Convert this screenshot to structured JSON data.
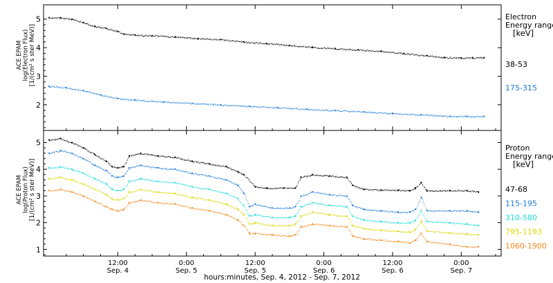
{
  "chart_data": [
    {
      "type": "scatter",
      "panel": "electron",
      "ylabel_lines": [
        "ACE EPAM",
        "log(Electron Flux)",
        "[1/(cm² s ster MeV)]"
      ],
      "yticks": [
        "5",
        "4",
        "3",
        "2"
      ],
      "ylim": [
        1.1,
        5.5
      ],
      "xlim": [
        0,
        78
      ],
      "legend_title": [
        "Electron",
        "Energy ranges",
        "[keV]"
      ],
      "grid": false,
      "series": [
        {
          "name": "38-53",
          "color": "#000000",
          "points": [
            [
              0,
              5.05
            ],
            [
              2,
              5.05
            ],
            [
              4,
              5.0
            ],
            [
              6,
              4.88
            ],
            [
              8,
              4.75
            ],
            [
              10,
              4.68
            ],
            [
              12,
              4.57
            ],
            [
              13,
              4.48
            ],
            [
              15,
              4.45
            ],
            [
              18,
              4.42
            ],
            [
              22,
              4.38
            ],
            [
              26,
              4.32
            ],
            [
              30,
              4.28
            ],
            [
              34,
              4.2
            ],
            [
              38,
              4.15
            ],
            [
              42,
              4.08
            ],
            [
              46,
              4.02
            ],
            [
              50,
              3.97
            ],
            [
              54,
              3.93
            ],
            [
              58,
              3.88
            ],
            [
              62,
              3.8
            ],
            [
              66,
              3.72
            ],
            [
              69,
              3.66
            ],
            [
              72,
              3.64
            ],
            [
              74,
              3.65
            ],
            [
              76,
              3.65
            ]
          ]
        },
        {
          "name": "175-315",
          "color": "#1a7ad8",
          "points": [
            [
              0,
              2.65
            ],
            [
              3,
              2.6
            ],
            [
              6,
              2.5
            ],
            [
              9,
              2.35
            ],
            [
              12,
              2.22
            ],
            [
              15,
              2.17
            ],
            [
              20,
              2.1
            ],
            [
              25,
              2.05
            ],
            [
              30,
              2.0
            ],
            [
              35,
              1.95
            ],
            [
              40,
              1.9
            ],
            [
              45,
              1.85
            ],
            [
              50,
              1.8
            ],
            [
              55,
              1.75
            ],
            [
              60,
              1.7
            ],
            [
              65,
              1.65
            ],
            [
              70,
              1.6
            ],
            [
              73,
              1.6
            ],
            [
              76,
              1.6
            ]
          ]
        }
      ]
    },
    {
      "type": "scatter",
      "panel": "proton",
      "ylabel_lines": [
        "ACE EPAM",
        "log(Proton Flux)",
        "[1/(cm² s ster MeV)]"
      ],
      "yticks": [
        "5",
        "4",
        "3",
        "2",
        "1"
      ],
      "ylim": [
        0.75,
        5.45
      ],
      "xlim": [
        0,
        78
      ],
      "legend_title": [
        "Proton",
        "Energy ranges",
        "[keV]"
      ],
      "grid": false,
      "series": [
        {
          "name": "47-68",
          "color": "#000000",
          "points": [
            [
              0,
              5.1
            ],
            [
              2,
              5.15
            ],
            [
              4,
              5.0
            ],
            [
              6,
              4.8
            ],
            [
              8,
              4.55
            ],
            [
              10,
              4.3
            ],
            [
              11,
              4.1
            ],
            [
              12,
              4.05
            ],
            [
              13,
              4.1
            ],
            [
              14,
              4.5
            ],
            [
              16,
              4.6
            ],
            [
              19,
              4.5
            ],
            [
              22,
              4.45
            ],
            [
              25,
              4.3
            ],
            [
              28,
              4.2
            ],
            [
              31,
              4.1
            ],
            [
              33,
              3.9
            ],
            [
              34,
              3.8
            ],
            [
              36,
              3.35
            ],
            [
              38,
              3.3
            ],
            [
              41,
              3.3
            ],
            [
              43,
              3.3
            ],
            [
              44,
              3.7
            ],
            [
              46,
              3.8
            ],
            [
              49,
              3.75
            ],
            [
              52,
              3.7
            ],
            [
              53,
              3.4
            ],
            [
              55,
              3.25
            ],
            [
              58,
              3.22
            ],
            [
              61,
              3.22
            ],
            [
              63,
              3.2
            ],
            [
              64,
              3.3
            ],
            [
              65,
              3.5
            ],
            [
              66,
              3.2
            ],
            [
              70,
              3.2
            ],
            [
              73,
              3.2
            ],
            [
              75,
              3.15
            ]
          ]
        },
        {
          "name": "115-195",
          "color": "#1a7ad8",
          "points": [
            [
              0,
              4.6
            ],
            [
              2,
              4.7
            ],
            [
              4,
              4.6
            ],
            [
              6,
              4.4
            ],
            [
              8,
              4.15
            ],
            [
              10,
              3.95
            ],
            [
              11,
              3.75
            ],
            [
              12,
              3.7
            ],
            [
              13,
              3.75
            ],
            [
              14,
              4.05
            ],
            [
              16,
              4.15
            ],
            [
              19,
              4.05
            ],
            [
              22,
              4.0
            ],
            [
              25,
              3.85
            ],
            [
              28,
              3.75
            ],
            [
              31,
              3.6
            ],
            [
              33,
              3.4
            ],
            [
              34,
              3.1
            ],
            [
              35,
              2.6
            ],
            [
              36,
              2.7
            ],
            [
              39,
              2.55
            ],
            [
              42,
              2.55
            ],
            [
              43,
              2.6
            ],
            [
              44,
              3.0
            ],
            [
              46,
              3.15
            ],
            [
              49,
              3.05
            ],
            [
              52,
              3.0
            ],
            [
              53,
              2.65
            ],
            [
              55,
              2.5
            ],
            [
              58,
              2.45
            ],
            [
              61,
              2.4
            ],
            [
              63,
              2.4
            ],
            [
              64,
              2.5
            ],
            [
              65,
              2.95
            ],
            [
              66,
              2.45
            ],
            [
              70,
              2.45
            ],
            [
              73,
              2.45
            ],
            [
              75,
              2.4
            ]
          ]
        },
        {
          "name": "310-580",
          "color": "#22d8d8",
          "points": [
            [
              0,
              4.05
            ],
            [
              2,
              4.1
            ],
            [
              4,
              4.0
            ],
            [
              6,
              3.85
            ],
            [
              8,
              3.65
            ],
            [
              10,
              3.45
            ],
            [
              11,
              3.25
            ],
            [
              12,
              3.2
            ],
            [
              13,
              3.25
            ],
            [
              14,
              3.55
            ],
            [
              16,
              3.65
            ],
            [
              19,
              3.55
            ],
            [
              22,
              3.5
            ],
            [
              25,
              3.35
            ],
            [
              28,
              3.25
            ],
            [
              31,
              3.1
            ],
            [
              33,
              2.9
            ],
            [
              34,
              2.65
            ],
            [
              35,
              2.25
            ],
            [
              36,
              2.3
            ],
            [
              39,
              2.2
            ],
            [
              42,
              2.2
            ],
            [
              43,
              2.25
            ],
            [
              44,
              2.6
            ],
            [
              46,
              2.75
            ],
            [
              49,
              2.65
            ],
            [
              52,
              2.6
            ],
            [
              53,
              2.25
            ],
            [
              55,
              2.1
            ],
            [
              58,
              2.05
            ],
            [
              61,
              2.0
            ],
            [
              63,
              2.0
            ],
            [
              64,
              2.1
            ],
            [
              65,
              2.45
            ],
            [
              66,
              2.05
            ],
            [
              70,
              2.0
            ],
            [
              73,
              1.95
            ],
            [
              75,
              1.9
            ]
          ]
        },
        {
          "name": "795-1193",
          "color": "#d8d800",
          "points": [
            [
              0,
              3.65
            ],
            [
              2,
              3.7
            ],
            [
              4,
              3.6
            ],
            [
              6,
              3.45
            ],
            [
              8,
              3.25
            ],
            [
              10,
              3.05
            ],
            [
              11,
              2.9
            ],
            [
              12,
              2.85
            ],
            [
              13,
              2.9
            ],
            [
              14,
              3.15
            ],
            [
              16,
              3.25
            ],
            [
              19,
              3.15
            ],
            [
              22,
              3.1
            ],
            [
              25,
              2.95
            ],
            [
              28,
              2.85
            ],
            [
              31,
              2.7
            ],
            [
              33,
              2.5
            ],
            [
              34,
              2.3
            ],
            [
              35,
              1.95
            ],
            [
              36,
              2.0
            ],
            [
              39,
              1.9
            ],
            [
              42,
              1.9
            ],
            [
              43,
              1.95
            ],
            [
              44,
              2.25
            ],
            [
              46,
              2.4
            ],
            [
              49,
              2.3
            ],
            [
              52,
              2.25
            ],
            [
              53,
              1.9
            ],
            [
              55,
              1.78
            ],
            [
              58,
              1.72
            ],
            [
              61,
              1.68
            ],
            [
              63,
              1.65
            ],
            [
              64,
              1.75
            ],
            [
              65,
              2.05
            ],
            [
              66,
              1.7
            ],
            [
              70,
              1.62
            ],
            [
              73,
              1.58
            ],
            [
              75,
              1.55
            ]
          ]
        },
        {
          "name": "1060-1900",
          "color": "#f08a20",
          "points": [
            [
              0,
              3.2
            ],
            [
              2,
              3.25
            ],
            [
              4,
              3.15
            ],
            [
              6,
              3.0
            ],
            [
              8,
              2.8
            ],
            [
              10,
              2.6
            ],
            [
              11,
              2.5
            ],
            [
              12,
              2.45
            ],
            [
              13,
              2.5
            ],
            [
              14,
              2.75
            ],
            [
              16,
              2.85
            ],
            [
              19,
              2.75
            ],
            [
              22,
              2.7
            ],
            [
              25,
              2.55
            ],
            [
              28,
              2.45
            ],
            [
              31,
              2.3
            ],
            [
              33,
              2.1
            ],
            [
              34,
              1.9
            ],
            [
              35,
              1.6
            ],
            [
              36,
              1.6
            ],
            [
              39,
              1.55
            ],
            [
              42,
              1.5
            ],
            [
              43,
              1.55
            ],
            [
              44,
              1.85
            ],
            [
              46,
              1.95
            ],
            [
              49,
              1.9
            ],
            [
              52,
              1.85
            ],
            [
              53,
              1.5
            ],
            [
              55,
              1.4
            ],
            [
              58,
              1.35
            ],
            [
              61,
              1.3
            ],
            [
              63,
              1.25
            ],
            [
              64,
              1.35
            ],
            [
              65,
              1.6
            ],
            [
              66,
              1.3
            ],
            [
              70,
              1.2
            ],
            [
              73,
              1.1
            ],
            [
              75,
              1.1
            ]
          ]
        }
      ]
    }
  ],
  "x_axis": {
    "ticks": [
      {
        "value": 12,
        "line1": "12:00",
        "line2": "Sep. 4"
      },
      {
        "value": 24,
        "line1": "0:00",
        "line2": "Sep. 5"
      },
      {
        "value": 36,
        "line1": "12:00",
        "line2": "Sep. 5"
      },
      {
        "value": 48,
        "line1": "0:00",
        "line2": "Sep. 6"
      },
      {
        "value": 60,
        "line1": "12:00",
        "line2": "Sep. 6"
      },
      {
        "value": 72,
        "line1": "0:00",
        "line2": "Sep. 7"
      }
    ],
    "xlabel": "hours:minutes, Sep.  4, 2012 - Sep.  7, 2012"
  }
}
